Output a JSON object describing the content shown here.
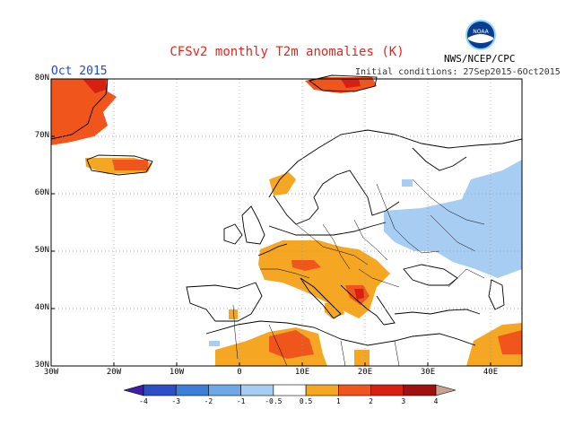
{
  "title": "CFSv2 monthly T2m anomalies (K)",
  "month": "Oct 2015",
  "initial_conditions": "Initial conditions: 27Sep2015-6Oct2015",
  "organization": "NWS/NCEP/CPC",
  "logo_text": "NOAA",
  "lat_labels": [
    "80N",
    "70N",
    "60N",
    "50N",
    "40N",
    "30N"
  ],
  "lon_labels": [
    "30W",
    "20W",
    "10W",
    "0",
    "10E",
    "20E",
    "30E",
    "40E"
  ],
  "colorbar": {
    "labels": [
      "-4",
      "-3",
      "-2",
      "-1",
      "-0.5",
      "0.5",
      "1",
      "2",
      "3",
      "4"
    ],
    "colors": [
      "#3f1fa8",
      "#2c4fc7",
      "#3d7fd8",
      "#6fa8e8",
      "#a8cdf2",
      "#ffffff",
      "#f5a623",
      "#f0551c",
      "#d91f12",
      "#a01010",
      "#c9a092"
    ]
  },
  "anomaly_colors": {
    "light_blue": "#a8cdf2",
    "orange": "#f5a623",
    "red_orange": "#f0551c",
    "red": "#d91f12"
  }
}
